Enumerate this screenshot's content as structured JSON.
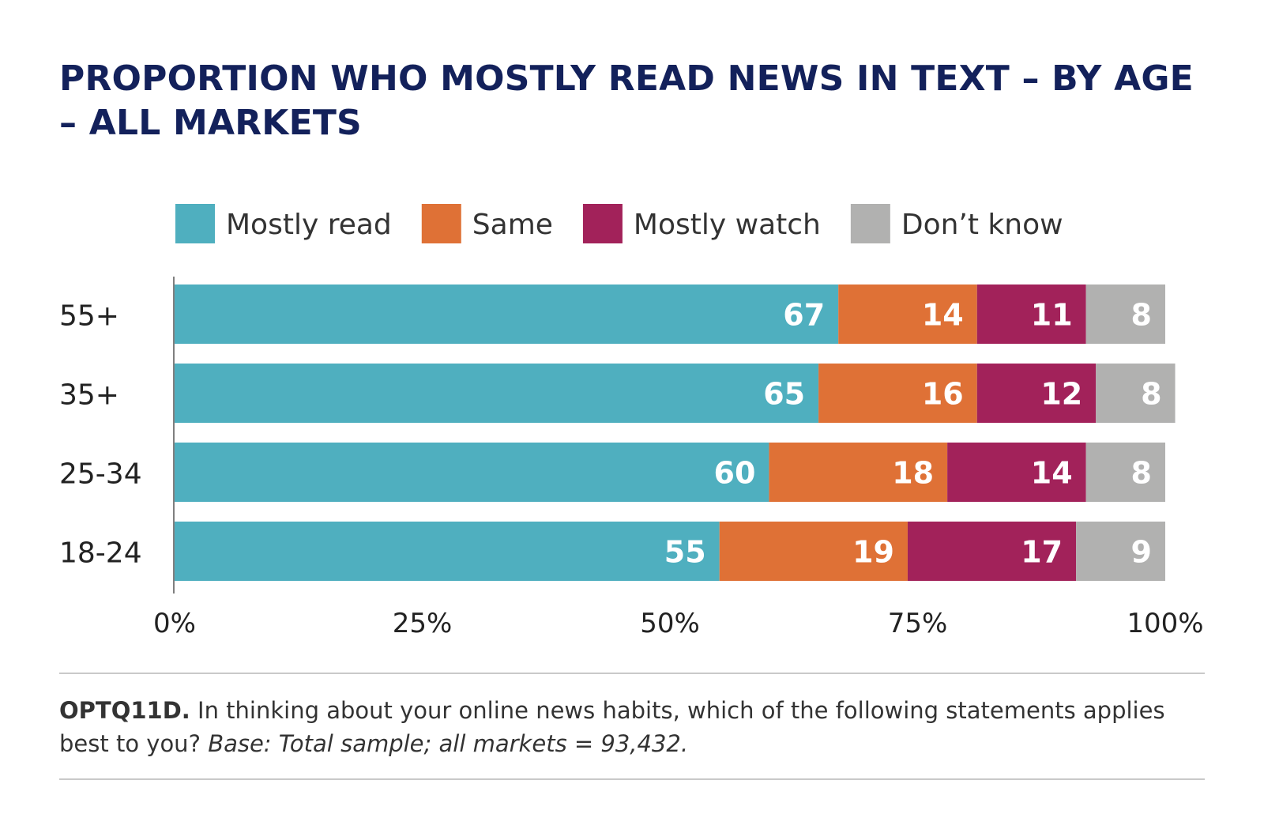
{
  "chart_data": {
    "type": "bar",
    "orientation": "horizontal",
    "stacked": true,
    "title": "PROPORTION WHO MOSTLY READ NEWS IN TEXT – BY AGE – ALL MARKETS",
    "categories": [
      "55+",
      "35+",
      "25-34",
      "18-24"
    ],
    "series": [
      {
        "name": "Mostly read",
        "color": "#4fafbf",
        "values": [
          67,
          65,
          60,
          55
        ]
      },
      {
        "name": "Same",
        "color": "#df7136",
        "values": [
          14,
          16,
          18,
          19
        ]
      },
      {
        "name": "Mostly watch",
        "color": "#a2225a",
        "values": [
          11,
          12,
          14,
          17
        ]
      },
      {
        "name": "Don’t know",
        "color": "#b1b1b0",
        "values": [
          8,
          8,
          8,
          9
        ]
      }
    ],
    "xlim": [
      0,
      100
    ],
    "xticks": [
      0,
      25,
      50,
      75,
      100
    ],
    "xtick_labels": [
      "0%",
      "25%",
      "50%",
      "75%",
      "100%"
    ],
    "xlabel": "",
    "ylabel": "",
    "legend_position": "top",
    "grid": false
  },
  "footnote": {
    "code": "OPTQ11D.",
    "question": " In thinking about your online news habits, which of the following statements applies best to you? ",
    "base": "Base: Total sample; all markets = 93,432."
  },
  "colors": {
    "title": "#13215b",
    "axis_text": "#222222",
    "bar_label": "#ffffff"
  }
}
